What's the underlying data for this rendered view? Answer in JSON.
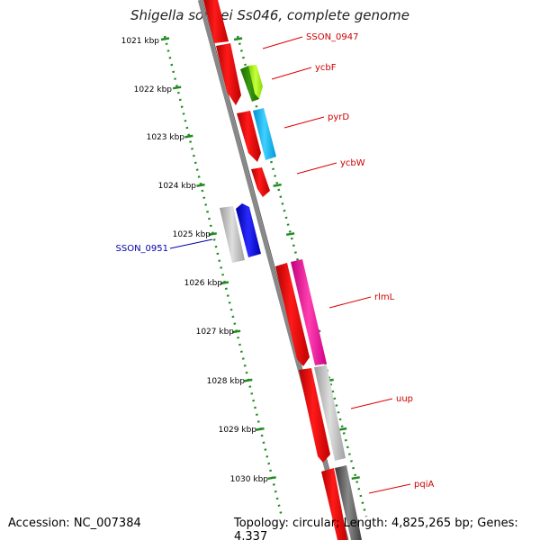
{
  "title": "Shigella sonnei Ss046, complete genome",
  "footer": {
    "accession": "Accession: NC_007384",
    "topology": "Topology: circular; Length: 4,825,265 bp; Genes: 4,337"
  },
  "kbp_ticks": [
    "1021 kbp",
    "1022 kbp",
    "1023 kbp",
    "1024 kbp",
    "1025 kbp",
    "1026 kbp",
    "1027 kbp",
    "1028 kbp",
    "1029 kbp",
    "1030 kbp"
  ],
  "gene_labels": [
    {
      "name": "SSON_0947",
      "color": "#cc0000"
    },
    {
      "name": "ycbF",
      "color": "#cc0000"
    },
    {
      "name": "pyrD",
      "color": "#cc0000"
    },
    {
      "name": "ycbW",
      "color": "#cc0000"
    },
    {
      "name": "SSON_0951",
      "color": "#0000aa"
    },
    {
      "name": "rlmL",
      "color": "#cc0000"
    },
    {
      "name": "uup",
      "color": "#cc0000"
    },
    {
      "name": "pqiA",
      "color": "#cc0000"
    }
  ],
  "colors": {
    "backbone": "#888888",
    "red_gene": "#ee0000",
    "tick_green": "#228b22"
  }
}
